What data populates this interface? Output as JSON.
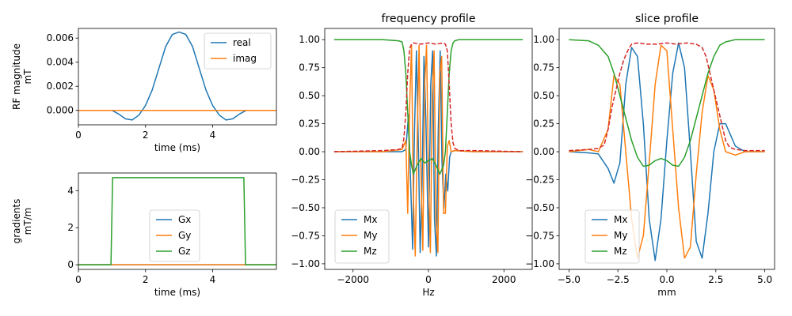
{
  "colors": {
    "blue": "#1f77b4",
    "orange": "#ff7f0e",
    "green": "#2ca02c",
    "red": "#d62728"
  },
  "chart_data": [
    {
      "type": "line",
      "id": "rf",
      "title": "",
      "xlabel": "time (ms)",
      "ylabel": [
        "RF magnitude",
        "mT"
      ],
      "xlim": [
        0,
        5.9
      ],
      "ylim": [
        -0.0012,
        0.0068
      ],
      "xticks": [
        0,
        2,
        4
      ],
      "xtick_labels": [
        "0",
        "2",
        "4"
      ],
      "yticks": [
        0,
        0.002,
        0.004,
        0.006
      ],
      "ytick_labels": [
        "0.000",
        "0.002",
        "0.004",
        "0.006"
      ],
      "legend": "top-right",
      "series": [
        {
          "name": "real",
          "color": "blue",
          "x": [
            0,
            1.0,
            1.2,
            1.4,
            1.6,
            1.8,
            2.0,
            2.2,
            2.4,
            2.6,
            2.8,
            3.0,
            3.2,
            3.4,
            3.6,
            3.8,
            4.0,
            4.2,
            4.4,
            4.6,
            4.8,
            5.0,
            5.9
          ],
          "y": [
            0,
            0,
            -0.0003,
            -0.0007,
            -0.0008,
            -0.0004,
            0.0004,
            0.0017,
            0.0035,
            0.0053,
            0.0063,
            0.0065,
            0.0063,
            0.0053,
            0.0035,
            0.0017,
            0.0004,
            -0.0004,
            -0.0008,
            -0.0007,
            -0.0003,
            0,
            0
          ]
        },
        {
          "name": "imag",
          "color": "orange",
          "x": [
            0,
            5.9
          ],
          "y": [
            0,
            0
          ]
        }
      ]
    },
    {
      "type": "line",
      "id": "grad",
      "title": "",
      "xlabel": "time (ms)",
      "ylabel": [
        "gradients",
        "mT/m"
      ],
      "xlim": [
        0,
        5.9
      ],
      "ylim": [
        -0.25,
        4.95
      ],
      "xticks": [
        0,
        2,
        4
      ],
      "xtick_labels": [
        "0",
        "2",
        "4"
      ],
      "yticks": [
        0,
        2,
        4
      ],
      "ytick_labels": [
        "0",
        "2",
        "4"
      ],
      "legend": "center",
      "series": [
        {
          "name": "Gx",
          "color": "blue",
          "x": [
            0,
            5.9
          ],
          "y": [
            0,
            0
          ]
        },
        {
          "name": "Gy",
          "color": "orange",
          "x": [
            0,
            5.9
          ],
          "y": [
            0,
            0
          ]
        },
        {
          "name": "Gz",
          "color": "green",
          "x": [
            0,
            0.97,
            1.02,
            4.93,
            4.98,
            5.9
          ],
          "y": [
            0,
            0,
            4.7,
            4.7,
            0,
            0
          ]
        }
      ]
    },
    {
      "type": "line",
      "id": "freq",
      "title": "frequency profile",
      "xlabel": "Hz",
      "ylabel": [
        ""
      ],
      "xlim": [
        -2750,
        2750
      ],
      "ylim": [
        -1.05,
        1.1
      ],
      "xticks": [
        -2000,
        0,
        2000
      ],
      "xtick_labels": [
        "−2000",
        "0",
        "2000"
      ],
      "yticks": [
        -1.0,
        -0.75,
        -0.5,
        -0.25,
        0,
        0.25,
        0.5,
        0.75,
        1.0
      ],
      "ytick_labels": [
        "−1.00",
        "−0.75",
        "−0.50",
        "−0.25",
        "0.00",
        "0.25",
        "0.50",
        "0.75",
        "1.00"
      ],
      "legend": "lower-left",
      "series": [
        {
          "name": "Mx",
          "color": "blue",
          "x": [
            -2500,
            -1200,
            -700,
            -600,
            -530,
            -470,
            -420,
            -370,
            -320,
            -270,
            -220,
            -170,
            -120,
            -70,
            0,
            60,
            110,
            160,
            210,
            260,
            310,
            360,
            410,
            460,
            510,
            560,
            600,
            700,
            1200,
            2500
          ],
          "y": [
            0,
            0,
            0.0,
            0.02,
            0.33,
            -0.3,
            -0.87,
            0.2,
            0.9,
            0.1,
            -0.9,
            -0.3,
            0.85,
            0.3,
            -0.85,
            0.6,
            0.9,
            -0.6,
            -0.93,
            0.2,
            0.9,
            -0.1,
            -0.5,
            -0.2,
            -0.35,
            -0.05,
            0.0,
            0.01,
            0,
            0
          ]
        },
        {
          "name": "My",
          "color": "orange",
          "x": [
            -2500,
            -1200,
            -700,
            -600,
            -550,
            -500,
            -450,
            -400,
            -350,
            -300,
            -250,
            -200,
            -150,
            -100,
            -50,
            0,
            50,
            100,
            150,
            200,
            250,
            300,
            350,
            400,
            450,
            500,
            550,
            600,
            700,
            1200,
            2500
          ],
          "y": [
            0,
            0,
            0.02,
            0.1,
            -0.55,
            0.4,
            0.95,
            -0.4,
            -0.93,
            0.1,
            0.95,
            -0.2,
            -0.88,
            0.6,
            0.95,
            -0.2,
            -0.9,
            0.5,
            0.9,
            -0.6,
            -0.9,
            0.7,
            0.85,
            -0.55,
            -0.55,
            0.05,
            0.1,
            0.0,
            0.01,
            0,
            0
          ]
        },
        {
          "name": "Mz",
          "color": "green",
          "x": [
            -2500,
            -1200,
            -800,
            -700,
            -650,
            -600,
            -550,
            -500,
            -450,
            -400,
            -300,
            -200,
            -100,
            0,
            100,
            200,
            300,
            400,
            450,
            500,
            550,
            600,
            650,
            700,
            800,
            1200,
            2500
          ],
          "y": [
            1.0,
            1.0,
            0.99,
            0.98,
            0.9,
            0.7,
            0.35,
            0.0,
            -0.12,
            -0.2,
            -0.12,
            -0.06,
            -0.1,
            -0.08,
            -0.06,
            -0.12,
            -0.2,
            -0.12,
            0.0,
            0.35,
            0.7,
            0.9,
            0.97,
            0.99,
            1.0,
            1.0,
            1.0
          ]
        },
        {
          "name": "",
          "color": "red",
          "dashed": true,
          "x": [
            -2500,
            -1200,
            -800,
            -700,
            -650,
            -600,
            -550,
            -500,
            -450,
            -400,
            -200,
            0,
            200,
            400,
            450,
            500,
            550,
            600,
            650,
            700,
            800,
            1200,
            2500
          ],
          "y": [
            0.0,
            0.01,
            0.02,
            0.03,
            0.12,
            0.35,
            0.7,
            0.92,
            0.96,
            0.97,
            0.96,
            0.97,
            0.96,
            0.97,
            0.96,
            0.9,
            0.6,
            0.25,
            0.08,
            0.03,
            0.01,
            0.01,
            0.0
          ]
        }
      ]
    },
    {
      "type": "line",
      "id": "slice",
      "title": "slice profile",
      "xlabel": "mm",
      "ylabel": [
        ""
      ],
      "xlim": [
        -5.5,
        5.5
      ],
      "ylim": [
        -1.05,
        1.1
      ],
      "xticks": [
        -5.0,
        -2.5,
        0.0,
        2.5,
        5.0
      ],
      "xtick_labels": [
        "−5.0",
        "−2.5",
        "0.0",
        "2.5",
        "5.0"
      ],
      "yticks": [
        -1.0,
        -0.75,
        -0.5,
        -0.25,
        0,
        0.25,
        0.5,
        0.75,
        1.0
      ],
      "ytick_labels": [
        "−1.00",
        "−0.75",
        "−0.50",
        "−0.25",
        "0.00",
        "0.25",
        "0.50",
        "0.75",
        "1.00"
      ],
      "legend": "lower-left",
      "series": [
        {
          "name": "Mx",
          "color": "blue",
          "x": [
            -5.0,
            -4.0,
            -3.5,
            -3.0,
            -2.7,
            -2.4,
            -2.1,
            -1.8,
            -1.5,
            -1.2,
            -0.9,
            -0.6,
            -0.3,
            0.0,
            0.3,
            0.6,
            0.9,
            1.2,
            1.5,
            1.8,
            2.1,
            2.4,
            2.7,
            3.0,
            3.5,
            4.0,
            5.0
          ],
          "y": [
            0.0,
            -0.01,
            -0.02,
            -0.15,
            -0.28,
            -0.1,
            0.6,
            0.93,
            0.85,
            0.25,
            -0.6,
            -0.97,
            -0.6,
            0.1,
            0.7,
            0.97,
            0.75,
            0.0,
            -0.8,
            -0.95,
            -0.55,
            0.0,
            0.25,
            0.25,
            0.05,
            0.0,
            0.0
          ]
        },
        {
          "name": "My",
          "color": "orange",
          "x": [
            -5.0,
            -4.0,
            -3.5,
            -3.0,
            -2.7,
            -2.4,
            -2.1,
            -1.8,
            -1.5,
            -1.2,
            -0.9,
            -0.6,
            -0.3,
            0.0,
            0.3,
            0.6,
            0.9,
            1.2,
            1.5,
            1.8,
            2.1,
            2.4,
            2.7,
            3.0,
            3.5,
            4.0,
            5.0
          ],
          "y": [
            0.0,
            0.02,
            0.0,
            0.2,
            0.68,
            0.6,
            0.0,
            -0.6,
            -0.95,
            -0.75,
            -0.1,
            0.6,
            0.95,
            0.9,
            0.2,
            -0.5,
            -0.95,
            -0.85,
            -0.2,
            0.35,
            0.68,
            0.55,
            0.2,
            0.0,
            -0.03,
            0.0,
            0.0
          ]
        },
        {
          "name": "Mz",
          "color": "green",
          "x": [
            -5.0,
            -4.0,
            -3.5,
            -3.0,
            -2.7,
            -2.4,
            -2.1,
            -1.8,
            -1.5,
            -1.2,
            -0.9,
            -0.6,
            -0.3,
            0.0,
            0.3,
            0.6,
            0.9,
            1.2,
            1.5,
            1.8,
            2.1,
            2.4,
            2.7,
            3.0,
            3.5,
            4.0,
            5.0
          ],
          "y": [
            1.0,
            0.99,
            0.95,
            0.85,
            0.7,
            0.5,
            0.3,
            0.1,
            -0.05,
            -0.13,
            -0.12,
            -0.08,
            -0.06,
            -0.08,
            -0.12,
            -0.13,
            -0.05,
            0.1,
            0.3,
            0.5,
            0.7,
            0.85,
            0.95,
            0.98,
            1.0,
            1.0,
            1.0
          ]
        },
        {
          "name": "",
          "color": "red",
          "dashed": true,
          "x": [
            -5.0,
            -4.0,
            -3.5,
            -3.2,
            -3.0,
            -2.8,
            -2.6,
            -2.4,
            -2.2,
            -2.0,
            -1.8,
            -1.5,
            -1.0,
            -0.5,
            0.0,
            0.5,
            1.0,
            1.5,
            1.8,
            2.0,
            2.2,
            2.4,
            2.6,
            2.8,
            3.0,
            3.2,
            3.5,
            4.0,
            5.0
          ],
          "y": [
            0.01,
            0.02,
            0.03,
            0.06,
            0.2,
            0.4,
            0.55,
            0.7,
            0.82,
            0.9,
            0.96,
            0.97,
            0.96,
            0.96,
            0.97,
            0.96,
            0.97,
            0.96,
            0.93,
            0.85,
            0.7,
            0.55,
            0.4,
            0.25,
            0.1,
            0.04,
            0.02,
            0.01,
            0.01
          ]
        }
      ]
    }
  ]
}
